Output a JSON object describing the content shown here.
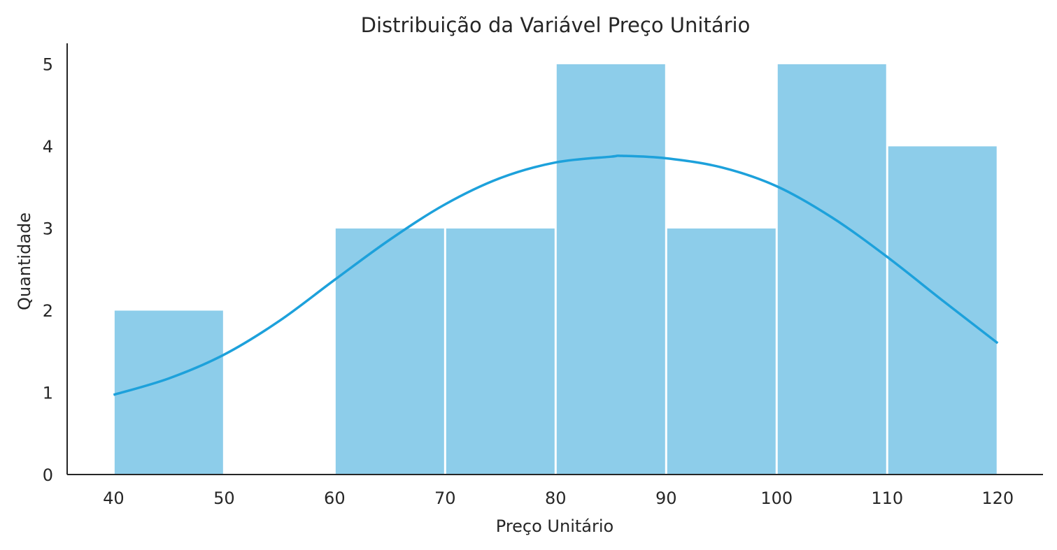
{
  "chart_data": {
    "type": "bar",
    "title": "Distribuição da Variável Preço Unitário",
    "xlabel": "Preço Unitário",
    "ylabel": "Quantidade",
    "bins": [
      {
        "start": 40,
        "end": 50,
        "count": 2
      },
      {
        "start": 50,
        "end": 60,
        "count": 0
      },
      {
        "start": 60,
        "end": 70,
        "count": 3
      },
      {
        "start": 70,
        "end": 80,
        "count": 3
      },
      {
        "start": 80,
        "end": 90,
        "count": 5
      },
      {
        "start": 90,
        "end": 100,
        "count": 3
      },
      {
        "start": 100,
        "end": 110,
        "count": 5
      },
      {
        "start": 110,
        "end": 120,
        "count": 4
      }
    ],
    "kde": {
      "x": [
        40,
        45,
        50,
        55,
        60,
        65,
        70,
        75,
        80,
        85,
        86,
        90,
        95,
        100,
        105,
        110,
        115,
        120
      ],
      "y": [
        0.97,
        1.17,
        1.46,
        1.87,
        2.37,
        2.86,
        3.29,
        3.61,
        3.8,
        3.87,
        3.88,
        3.85,
        3.74,
        3.51,
        3.13,
        2.65,
        2.12,
        1.6
      ]
    },
    "xticks": [
      40,
      50,
      60,
      70,
      80,
      90,
      100,
      110,
      120
    ],
    "yticks": [
      0,
      1,
      2,
      3,
      4,
      5
    ],
    "xlim": [
      35.8,
      124.1
    ],
    "ylim": [
      0,
      5.25
    ],
    "grid": false,
    "colors": {
      "bar": "#8dcdea",
      "line": "#1da1db",
      "axis": "#262626",
      "text": "#262626"
    }
  }
}
